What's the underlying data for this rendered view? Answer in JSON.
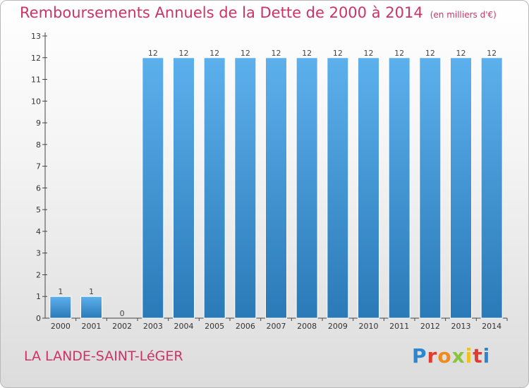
{
  "header": {
    "title": "Remboursements Annuels de la Dette de 2000 à 2014",
    "subtitle": "(en milliers d'€)"
  },
  "footer": {
    "commune": "LA LANDE-SAINT-LéGER",
    "logo_text": "Proxiti",
    "logo_letters": [
      "P",
      "r",
      "o",
      "x",
      "i",
      "t",
      "i"
    ]
  },
  "colors": {
    "title": "#cc3366",
    "bar_top": "#5cb0ec",
    "bar_bottom": "#2a7ab8"
  },
  "chart_data": {
    "type": "bar",
    "title": "Remboursements Annuels de la Dette de 2000 à 2014",
    "subtitle": "(en milliers d'€)",
    "xlabel": "",
    "ylabel": "",
    "categories": [
      "2000",
      "2001",
      "2002",
      "2003",
      "2004",
      "2005",
      "2006",
      "2007",
      "2008",
      "2009",
      "2010",
      "2011",
      "2012",
      "2013",
      "2014"
    ],
    "values": [
      1,
      1,
      0,
      12,
      12,
      12,
      12,
      12,
      12,
      12,
      12,
      12,
      12,
      12,
      12
    ],
    "data_labels": [
      "1",
      "1",
      "0",
      "12",
      "12",
      "12",
      "12",
      "12",
      "12",
      "12",
      "12",
      "12",
      "12",
      "12",
      "12"
    ],
    "ylim": [
      0,
      13
    ],
    "yticks": [
      0,
      1,
      2,
      3,
      4,
      5,
      6,
      7,
      8,
      9,
      10,
      11,
      12,
      13
    ],
    "grid": false,
    "legend": "none"
  }
}
